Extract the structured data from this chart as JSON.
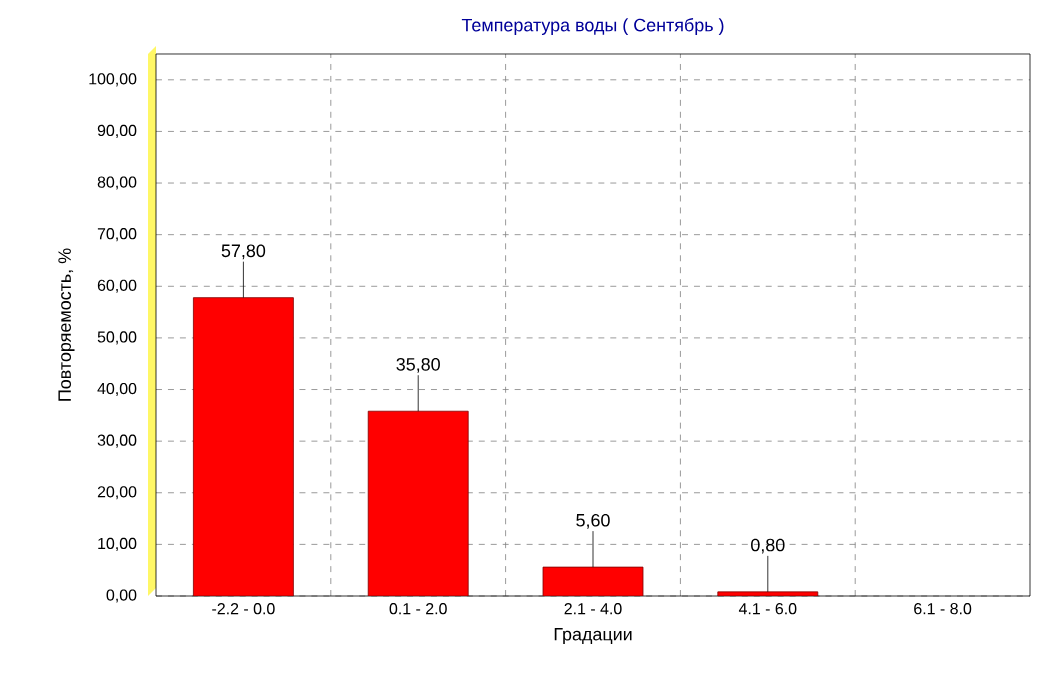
{
  "chart_data": {
    "type": "bar",
    "title": "Температура воды    ( Сентябрь )",
    "xlabel": "Градации",
    "ylabel": "Повторяемость, %",
    "categories": [
      "-2.2 - 0.0",
      "0.1 - 2.0",
      "2.1 - 4.0",
      "4.1 - 6.0",
      "6.1 - 8.0"
    ],
    "values": [
      57.8,
      35.8,
      5.6,
      0.8,
      null
    ],
    "value_labels": [
      "57,80",
      "35,80",
      "5,60",
      "0,80",
      null
    ],
    "color": "#ff0000",
    "ylim": [
      0,
      105
    ],
    "yticks": [
      {
        "value": 0,
        "label": "0,00"
      },
      {
        "value": 10,
        "label": "10,00"
      },
      {
        "value": 20,
        "label": "20,00"
      },
      {
        "value": 30,
        "label": "30,00"
      },
      {
        "value": 40,
        "label": "40,00"
      },
      {
        "value": 50,
        "label": "50,00"
      },
      {
        "value": 60,
        "label": "60,00"
      },
      {
        "value": 70,
        "label": "70,00"
      },
      {
        "value": 80,
        "label": "80,00"
      },
      {
        "value": 90,
        "label": "90,00"
      },
      {
        "value": 100,
        "label": "100,00"
      }
    ],
    "grid": true
  }
}
